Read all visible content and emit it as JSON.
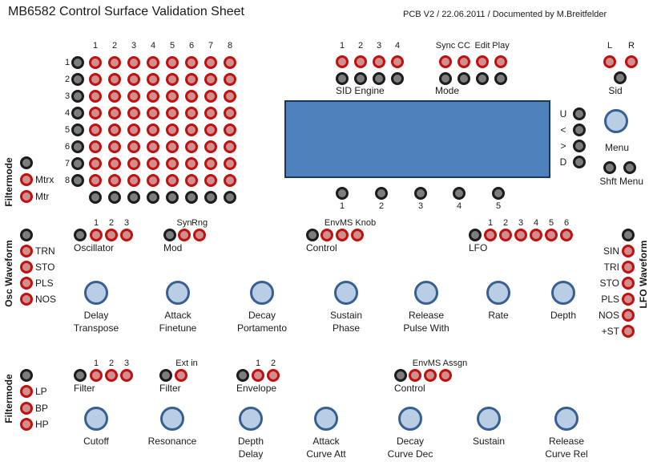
{
  "header": {
    "title": "MB6582 Control Surface Validation Sheet",
    "subtitle": "PCB V2 / 22.06.2011 / Documented by M.Breitfelder"
  },
  "colors": {
    "led_red_ring": "#c0100f",
    "led_red_fill": "#d08e8e",
    "led_gray_ring": "#1c1c1c",
    "led_gray_fill": "#7d7d7d",
    "knob_fill": "#b9cde5",
    "knob_ring": "#376092",
    "lcd_fill": "#4f81bd",
    "lcd_border": "#17375e",
    "text": "#1a1a1a"
  },
  "matrix": {
    "col_labels": [
      "1",
      "2",
      "3",
      "4",
      "5",
      "6",
      "7",
      "8"
    ],
    "row_labels": [
      "1",
      "2",
      "3",
      "4",
      "5",
      "6",
      "7",
      "8"
    ]
  },
  "sid_engine": {
    "caption": "SID Engine",
    "columns": [
      "1",
      "2",
      "3",
      "4"
    ]
  },
  "mode": {
    "caption": "Mode",
    "columns": [
      "Sync",
      "CC",
      "Edit",
      "Play"
    ]
  },
  "sid_output": {
    "caption": "Sid",
    "leds": [
      "L",
      "R"
    ]
  },
  "nav_buttons": [
    "U",
    "<",
    ">",
    "D"
  ],
  "menu": {
    "knob_label": "Menu",
    "buttons": [
      "Shft",
      "Menu"
    ]
  },
  "lcd_buttons": [
    "1",
    "2",
    "3",
    "4",
    "5"
  ],
  "led_groups": [
    {
      "id": "oscillator",
      "caption": "Oscillator",
      "led_labels": [
        "1",
        "2",
        "3"
      ]
    },
    {
      "id": "mod",
      "caption": "Mod",
      "led_labels": [
        "Syn",
        "Rng"
      ]
    },
    {
      "id": "control-knob",
      "caption": "Control",
      "group_label": "EnvMS Knob",
      "led_count": 3
    },
    {
      "id": "lfo",
      "caption": "LFO",
      "led_labels": [
        "1",
        "2",
        "3",
        "4",
        "5",
        "6"
      ]
    },
    {
      "id": "filter-select",
      "caption": "Filter",
      "led_labels": [
        "1",
        "2",
        "3"
      ]
    },
    {
      "id": "filter-ext",
      "caption": "Filter",
      "group_label": "Ext in",
      "led_count": 1
    },
    {
      "id": "envelope",
      "caption": "Envelope",
      "led_labels": [
        "1",
        "2"
      ]
    },
    {
      "id": "control-assign",
      "caption": "Control",
      "group_label": "EnvMS Assgn",
      "led_count": 3
    }
  ],
  "side_groups": [
    {
      "id": "filtermode-top",
      "title": "Filtermode",
      "led_labels": [
        "",
        "Mtrx",
        "Mtr"
      ]
    },
    {
      "id": "osc-waveform",
      "title": "Osc Waveform",
      "led_labels": [
        "",
        "TRN",
        "STO",
        "PLS",
        "NOS"
      ]
    },
    {
      "id": "filtermode-bottom",
      "title": "Filtermode",
      "led_labels": [
        "",
        "LP",
        "BP",
        "HP"
      ]
    },
    {
      "id": "lfo-waveform",
      "title": "LFO Waveform",
      "led_labels": [
        "",
        "SIN",
        "TRI",
        "STO",
        "PLS",
        "NOS",
        "+ST"
      ]
    }
  ],
  "knob_rows": [
    [
      [
        "Delay",
        "Transpose"
      ],
      [
        "Attack",
        "Finetune"
      ],
      [
        "Decay",
        "Portamento"
      ],
      [
        "Sustain",
        "Phase"
      ],
      [
        "Release",
        "Pulse With"
      ],
      [
        "Rate"
      ],
      [
        "Depth"
      ]
    ],
    [
      [
        "Cutoff"
      ],
      [
        "Resonance"
      ],
      [
        "Depth",
        "Delay"
      ],
      [
        "Attack",
        "Curve Att"
      ],
      [
        "Decay",
        "Curve Dec"
      ],
      [
        "Sustain"
      ],
      [
        "Release",
        "Curve Rel"
      ]
    ]
  ]
}
